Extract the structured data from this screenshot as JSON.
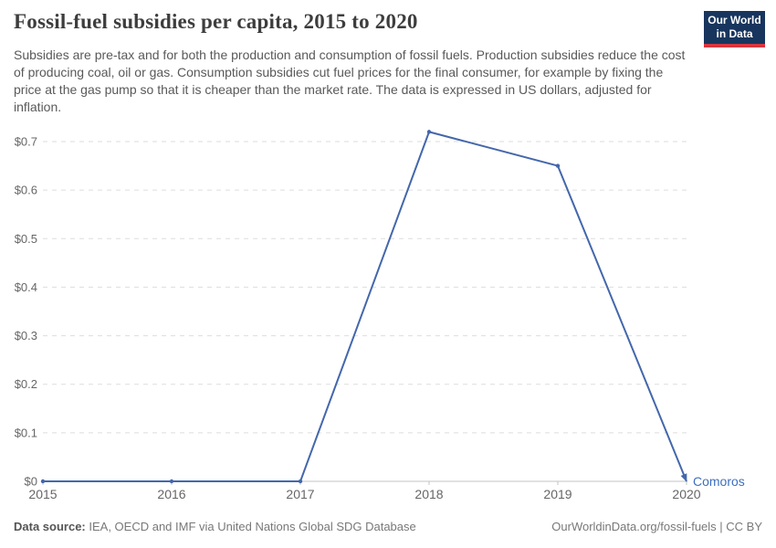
{
  "header": {
    "title": "Fossil-fuel subsidies per capita, 2015 to 2020",
    "subtitle": "Subsidies are pre-tax and for both the production and consumption of fossil fuels. Production subsidies reduce the cost of producing coal, oil or gas. Consumption subsidies cut fuel prices for the final consumer, for example by fixing the price at the gas pump so that it is cheaper than the market rate. The data is expressed in US dollars, adjusted for inflation.",
    "logo": {
      "line1": "Our World",
      "line2": "in Data"
    }
  },
  "chart_data": {
    "type": "line",
    "title": "Fossil-fuel subsidies per capita, 2015 to 2020",
    "x": [
      2015,
      2016,
      2017,
      2018,
      2019,
      2020
    ],
    "xtick_labels": [
      "2015",
      "2016",
      "2017",
      "2018",
      "2019",
      "2020"
    ],
    "series": [
      {
        "name": "Comoros",
        "values": [
          0,
          0,
          0,
          0.72,
          0.65,
          0
        ]
      }
    ],
    "ylim": [
      0,
      0.7
    ],
    "ytick_labels": [
      "$0",
      "$0.1",
      "$0.2",
      "$0.3",
      "$0.4",
      "$0.5",
      "$0.6",
      "$0.7"
    ],
    "grid": true,
    "legend_position": "end-of-line-label",
    "xlabel": "",
    "ylabel": ""
  },
  "footer": {
    "datasource_label": "Data source:",
    "datasource_value": "IEA, OECD and IMF via United Nations Global SDG Database",
    "credit": "OurWorldinData.org/fossil-fuels | CC BY"
  },
  "colors": {
    "line": "#4467ab",
    "entity_label": "#3d6fc0",
    "logo_bg": "#18355e",
    "logo_stripe": "#d8353f",
    "grid": "#dddddd",
    "axis": "#c3c3c3",
    "tick_text": "#666666"
  }
}
